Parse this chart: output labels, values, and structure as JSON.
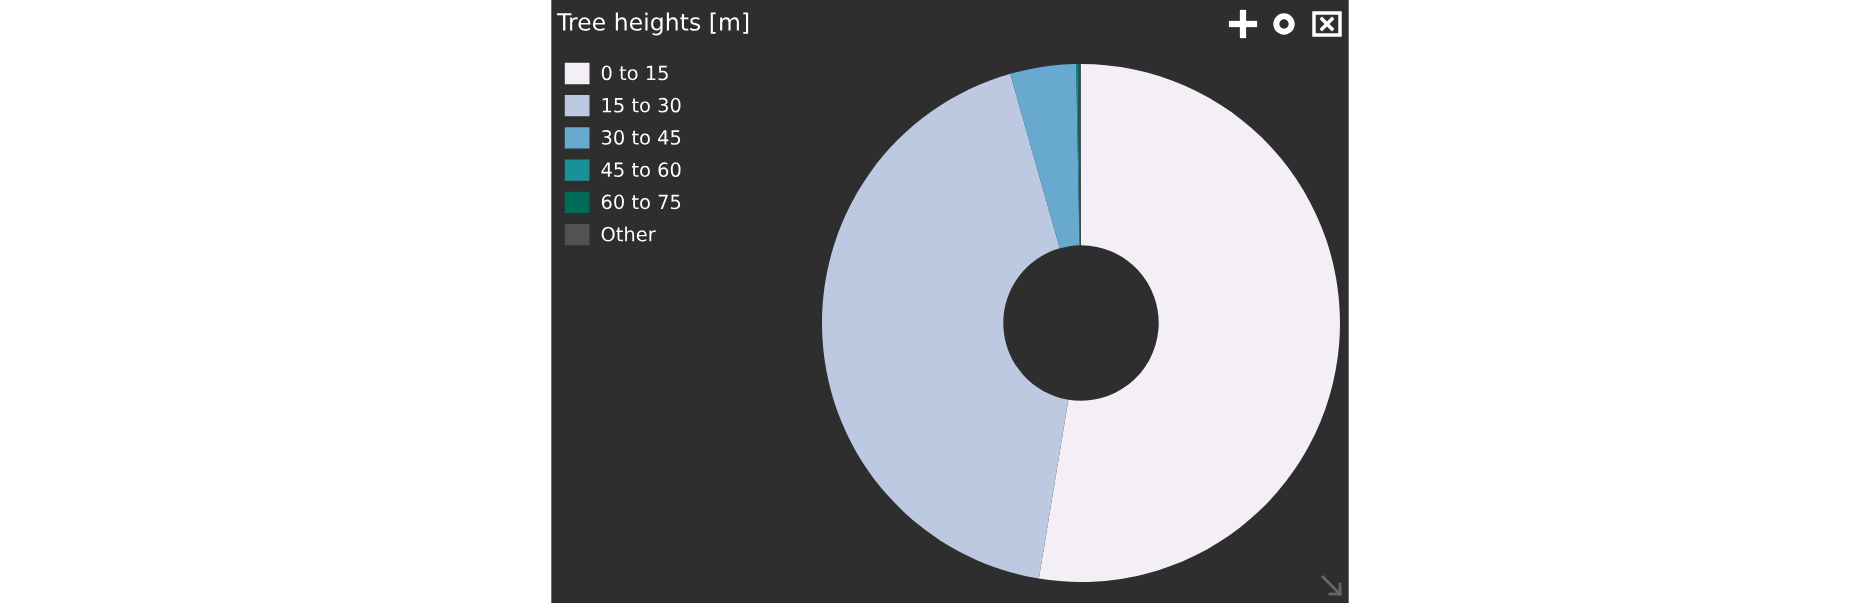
{
  "chart_data": {
    "type": "donut",
    "title": "Tree heights [m]",
    "categories": [
      "0 to 15",
      "15 to 30",
      "30 to 45",
      "45 to 60",
      "60 to 75",
      "Other"
    ],
    "values": [
      52.6,
      43.0,
      4.1,
      0.1,
      0.1,
      0.1
    ],
    "colors": [
      "#f4eef6",
      "#bcc9e1",
      "#67a9cf",
      "#1c9099",
      "#016c59",
      "#525252"
    ],
    "legend": "top left"
  }
}
